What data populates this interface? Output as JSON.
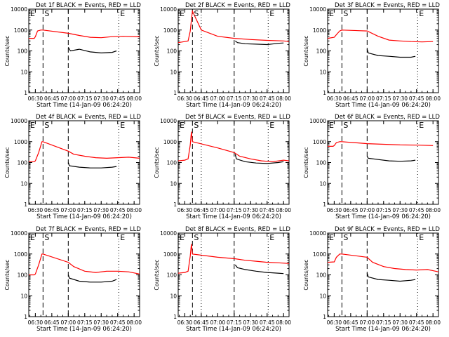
{
  "chart_data": [
    {
      "type": "line",
      "title": "Det 1f BLACK = Events, RED = LLD",
      "xlabel": "Start Time (14-Jan-09 06:24:20)",
      "ylabel": "Counts/sec",
      "xlim": [
        "06:24",
        "08:05"
      ],
      "ylim": [
        1,
        10000
      ],
      "yscale": "log",
      "grid": false,
      "xticks": [
        "06:30",
        "06:45",
        "07:00",
        "07:15",
        "07:30",
        "07:45",
        "08:00"
      ],
      "yticks": [
        "1",
        "10",
        "100",
        "1000",
        "10000"
      ],
      "markers": [
        {
          "label": "E",
          "x": "06:24"
        },
        {
          "label": "S",
          "x": "06:37"
        },
        {
          "label": "E",
          "x": "07:46"
        }
      ],
      "vlines_dashed": [
        "06:37",
        "07:00"
      ],
      "vlines_dotted": [
        "07:46"
      ],
      "series": [
        {
          "name": "LLD",
          "color": "#ff0000",
          "x": [
            "06:24",
            "06:29",
            "06:30",
            "06:32",
            "06:35",
            "06:36",
            "06:37",
            "07:00",
            "07:10",
            "07:20",
            "07:30",
            "07:40",
            "07:50",
            "08:05"
          ],
          "y": [
            400,
            400,
            480,
            900,
            1000,
            1000,
            1000,
            700,
            550,
            450,
            430,
            480,
            500,
            470
          ]
        },
        {
          "name": "Events",
          "color": "#000000",
          "x": [
            "07:00",
            "07:02",
            "07:10",
            "07:20",
            "07:30",
            "07:40",
            "07:44"
          ],
          "y": [
            150,
            100,
            120,
            90,
            80,
            85,
            100
          ]
        }
      ]
    },
    {
      "type": "line",
      "title": "Det 2f BLACK = Events, RED = LLD",
      "xlabel": "Start Time (14-Jan-09 06:24:20)",
      "ylabel": "Counts/sec",
      "xlim": [
        "06:24",
        "08:05"
      ],
      "ylim": [
        1,
        10000
      ],
      "yscale": "log",
      "grid": false,
      "xticks": [
        "06:30",
        "06:45",
        "07:00",
        "07:15",
        "07:30",
        "07:45",
        "08:00"
      ],
      "yticks": [
        "1",
        "10",
        "100",
        "1000",
        "10000"
      ],
      "markers": [
        {
          "label": "E",
          "x": "06:24"
        },
        {
          "label": "S",
          "x": "06:37"
        },
        {
          "label": "E",
          "x": "07:46"
        }
      ],
      "vlines_dashed": [
        "06:37",
        "07:15"
      ],
      "vlines_dotted": [
        "07:46",
        "06:45"
      ],
      "series": [
        {
          "name": "LLD",
          "color": "#ff0000",
          "x": [
            "06:24",
            "06:30",
            "06:33",
            "06:35",
            "06:36",
            "06:37",
            "06:45",
            "07:00",
            "07:15",
            "07:30",
            "07:45",
            "08:00",
            "08:05"
          ],
          "y": [
            250,
            280,
            300,
            900,
            3000,
            8000,
            1000,
            500,
            400,
            350,
            320,
            300,
            280
          ]
        },
        {
          "name": "Events",
          "color": "#000000",
          "x": [
            "07:16",
            "07:18",
            "07:25",
            "07:35",
            "07:45",
            "07:55",
            "08:00"
          ],
          "y": [
            300,
            250,
            220,
            210,
            200,
            230,
            240
          ]
        }
      ]
    },
    {
      "type": "line",
      "title": "Det 3f BLACK = Events, RED = LLD",
      "xlabel": "Start Time (14-Jan-09 06:24:20)",
      "ylabel": "Counts/sec",
      "xlim": [
        "06:24",
        "08:05"
      ],
      "ylim": [
        1,
        10000
      ],
      "yscale": "log",
      "grid": false,
      "xticks": [
        "06:30",
        "06:45",
        "07:00",
        "07:15",
        "07:30",
        "07:45",
        "08:00"
      ],
      "yticks": [
        "1",
        "10",
        "100",
        "1000",
        "10000"
      ],
      "markers": [
        {
          "label": "E",
          "x": "06:24"
        },
        {
          "label": "S",
          "x": "06:37"
        },
        {
          "label": "E",
          "x": "07:46"
        }
      ],
      "vlines_dashed": [
        "06:37",
        "07:00"
      ],
      "vlines_dotted": [
        "07:46"
      ],
      "series": [
        {
          "name": "LLD",
          "color": "#ff0000",
          "x": [
            "06:24",
            "06:30",
            "06:32",
            "06:35",
            "06:37",
            "07:00",
            "07:10",
            "07:20",
            "07:30",
            "07:40",
            "07:50",
            "08:00"
          ],
          "y": [
            400,
            450,
            600,
            900,
            1000,
            900,
            500,
            330,
            300,
            280,
            270,
            280
          ]
        },
        {
          "name": "Events",
          "color": "#000000",
          "x": [
            "07:00",
            "07:01",
            "07:10",
            "07:20",
            "07:30",
            "07:40",
            "07:44"
          ],
          "y": [
            120,
            80,
            60,
            55,
            50,
            50,
            55
          ]
        }
      ]
    },
    {
      "type": "line",
      "title": "Det 4f BLACK = Events, RED = LLD",
      "xlabel": "Start Time (14-Jan-09 06:24:20)",
      "ylabel": "Counts/sec",
      "xlim": [
        "06:24",
        "08:05"
      ],
      "ylim": [
        1,
        10000
      ],
      "yscale": "log",
      "grid": false,
      "xticks": [
        "06:30",
        "06:45",
        "07:00",
        "07:15",
        "07:30",
        "07:45",
        "08:00"
      ],
      "yticks": [
        "1",
        "10",
        "100",
        "1000",
        "10000"
      ],
      "markers": [
        {
          "label": "E",
          "x": "06:24"
        },
        {
          "label": "S",
          "x": "06:37"
        },
        {
          "label": "E",
          "x": "07:46"
        }
      ],
      "vlines_dashed": [
        "06:37",
        "07:00"
      ],
      "vlines_dotted": [
        "07:46"
      ],
      "series": [
        {
          "name": "LLD",
          "color": "#ff0000",
          "x": [
            "06:24",
            "06:29",
            "06:30",
            "06:33",
            "06:36",
            "06:37",
            "07:00",
            "07:05",
            "07:15",
            "07:25",
            "07:35",
            "07:45",
            "07:55",
            "08:05"
          ],
          "y": [
            110,
            110,
            120,
            300,
            1000,
            1000,
            350,
            250,
            200,
            170,
            160,
            170,
            180,
            160
          ]
        },
        {
          "name": "Events",
          "color": "#000000",
          "x": [
            "07:00",
            "07:01",
            "07:10",
            "07:20",
            "07:30",
            "07:40",
            "07:44"
          ],
          "y": [
            100,
            70,
            60,
            55,
            55,
            60,
            65
          ]
        }
      ]
    },
    {
      "type": "line",
      "title": "Det 5f BLACK = Events, RED = LLD",
      "xlabel": "Start Time (14-Jan-09 06:24:20)",
      "ylabel": "Counts/sec",
      "xlim": [
        "06:24",
        "08:05"
      ],
      "ylim": [
        1,
        10000
      ],
      "yscale": "log",
      "grid": false,
      "xticks": [
        "06:30",
        "06:45",
        "07:00",
        "07:15",
        "07:30",
        "07:45",
        "08:00"
      ],
      "yticks": [
        "1",
        "10",
        "100",
        "1000",
        "10000"
      ],
      "markers": [
        {
          "label": "E",
          "x": "06:24"
        },
        {
          "label": "S",
          "x": "06:37"
        },
        {
          "label": "E",
          "x": "07:46"
        }
      ],
      "vlines_dashed": [
        "06:37",
        "07:15"
      ],
      "vlines_dotted": [
        "07:46",
        "06:45"
      ],
      "series": [
        {
          "name": "LLD",
          "color": "#ff0000",
          "x": [
            "06:24",
            "06:30",
            "06:33",
            "06:35",
            "06:36",
            "06:37",
            "07:00",
            "07:15",
            "07:20",
            "07:30",
            "07:40",
            "07:50",
            "08:00",
            "08:05"
          ],
          "y": [
            120,
            130,
            150,
            700,
            3000,
            1000,
            500,
            300,
            200,
            150,
            120,
            110,
            130,
            120
          ]
        },
        {
          "name": "Events",
          "color": "#000000",
          "x": [
            "07:16",
            "07:17",
            "07:25",
            "07:35",
            "07:45",
            "07:55",
            "08:00"
          ],
          "y": [
            250,
            150,
            110,
            95,
            90,
            100,
            110
          ]
        }
      ]
    },
    {
      "type": "line",
      "title": "Det 6f BLACK = Events, RED = LLD",
      "xlabel": "Start Time (14-Jan-09 06:24:20)",
      "ylabel": "Counts/sec",
      "xlim": [
        "06:24",
        "08:05"
      ],
      "ylim": [
        1,
        10000
      ],
      "yscale": "log",
      "grid": false,
      "xticks": [
        "06:30",
        "06:45",
        "07:00",
        "07:15",
        "07:30",
        "07:45",
        "08:00"
      ],
      "yticks": [
        "1",
        "10",
        "100",
        "1000",
        "10000"
      ],
      "markers": [
        {
          "label": "E",
          "x": "06:24"
        },
        {
          "label": "S",
          "x": "06:37"
        },
        {
          "label": "E",
          "x": "07:46"
        }
      ],
      "vlines_dashed": [
        "06:37",
        "07:00"
      ],
      "vlines_dotted": [
        "07:46"
      ],
      "series": [
        {
          "name": "LLD",
          "color": "#ff0000",
          "x": [
            "06:24",
            "06:29",
            "06:30",
            "06:32",
            "06:35",
            "06:37",
            "07:00",
            "07:15",
            "07:30",
            "07:45",
            "08:00"
          ],
          "y": [
            600,
            600,
            650,
            900,
            1000,
            1000,
            800,
            750,
            700,
            680,
            650
          ]
        },
        {
          "name": "Events",
          "color": "#000000",
          "x": [
            "07:00",
            "07:01",
            "07:10",
            "07:20",
            "07:30",
            "07:40",
            "07:44"
          ],
          "y": [
            200,
            160,
            140,
            120,
            115,
            120,
            130
          ]
        }
      ]
    },
    {
      "type": "line",
      "title": "Det 7f BLACK = Events, RED = LLD",
      "xlabel": "Start Time (14-Jan-09 06:24:20)",
      "ylabel": "Counts/sec",
      "xlim": [
        "06:24",
        "08:05"
      ],
      "ylim": [
        1,
        10000
      ],
      "yscale": "log",
      "grid": false,
      "xticks": [
        "06:30",
        "06:45",
        "07:00",
        "07:15",
        "07:30",
        "07:45",
        "08:00"
      ],
      "yticks": [
        "1",
        "10",
        "100",
        "1000",
        "10000"
      ],
      "markers": [
        {
          "label": "E",
          "x": "06:24"
        },
        {
          "label": "S",
          "x": "06:37"
        },
        {
          "label": "E",
          "x": "07:46"
        }
      ],
      "vlines_dashed": [
        "06:37",
        "07:00"
      ],
      "vlines_dotted": [
        "07:46"
      ],
      "series": [
        {
          "name": "LLD",
          "color": "#ff0000",
          "x": [
            "06:24",
            "06:29",
            "06:30",
            "06:33",
            "06:36",
            "06:37",
            "07:00",
            "07:05",
            "07:15",
            "07:25",
            "07:35",
            "07:45",
            "07:55",
            "08:05"
          ],
          "y": [
            100,
            100,
            110,
            300,
            1000,
            1000,
            400,
            250,
            150,
            130,
            150,
            150,
            140,
            110
          ]
        },
        {
          "name": "Events",
          "color": "#000000",
          "x": [
            "07:00",
            "07:01",
            "07:10",
            "07:20",
            "07:30",
            "07:40",
            "07:44"
          ],
          "y": [
            100,
            70,
            50,
            45,
            45,
            50,
            60
          ]
        }
      ]
    },
    {
      "type": "line",
      "title": "Det 8f BLACK = Events, RED = LLD",
      "xlabel": "Start Time (14-Jan-09 06:24:20)",
      "ylabel": "Counts/sec",
      "xlim": [
        "06:24",
        "08:05"
      ],
      "ylim": [
        1,
        10000
      ],
      "yscale": "log",
      "grid": false,
      "xticks": [
        "06:30",
        "06:45",
        "07:00",
        "07:15",
        "07:30",
        "07:45",
        "08:00"
      ],
      "yticks": [
        "1",
        "10",
        "100",
        "1000",
        "10000"
      ],
      "markers": [
        {
          "label": "E",
          "x": "06:24"
        },
        {
          "label": "S",
          "x": "06:37"
        },
        {
          "label": "E",
          "x": "07:46"
        }
      ],
      "vlines_dashed": [
        "06:37",
        "07:15"
      ],
      "vlines_dotted": [
        "07:46",
        "06:45"
      ],
      "series": [
        {
          "name": "LLD",
          "color": "#ff0000",
          "x": [
            "06:24",
            "06:30",
            "06:33",
            "06:35",
            "06:36",
            "06:37",
            "07:00",
            "07:15",
            "07:25",
            "07:35",
            "07:45",
            "07:55",
            "08:05"
          ],
          "y": [
            120,
            130,
            150,
            800,
            3000,
            1000,
            700,
            600,
            500,
            450,
            400,
            380,
            350
          ]
        },
        {
          "name": "Events",
          "color": "#000000",
          "x": [
            "07:16",
            "07:18",
            "07:25",
            "07:35",
            "07:45",
            "07:55",
            "08:00"
          ],
          "y": [
            300,
            220,
            180,
            150,
            130,
            120,
            115
          ]
        }
      ]
    },
    {
      "type": "line",
      "title": "Det 9f BLACK = Events, RED = LLD",
      "xlabel": "Start Time (14-Jan-09 06:24:20)",
      "ylabel": "Counts/sec",
      "xlim": [
        "06:24",
        "08:05"
      ],
      "ylim": [
        1,
        10000
      ],
      "yscale": "log",
      "grid": false,
      "xticks": [
        "06:30",
        "06:45",
        "07:00",
        "07:15",
        "07:30",
        "07:45",
        "08:00"
      ],
      "yticks": [
        "1",
        "10",
        "100",
        "1000",
        "10000"
      ],
      "markers": [
        {
          "label": "E",
          "x": "06:24"
        },
        {
          "label": "S",
          "x": "06:37"
        },
        {
          "label": "E",
          "x": "07:46"
        }
      ],
      "vlines_dashed": [
        "06:37",
        "07:00"
      ],
      "vlines_dotted": [
        "07:46"
      ],
      "series": [
        {
          "name": "LLD",
          "color": "#ff0000",
          "x": [
            "06:24",
            "06:30",
            "06:32",
            "06:35",
            "06:37",
            "07:00",
            "07:05",
            "07:15",
            "07:25",
            "07:35",
            "07:45",
            "07:55",
            "08:05"
          ],
          "y": [
            400,
            420,
            700,
            1000,
            1000,
            700,
            400,
            250,
            200,
            180,
            170,
            180,
            140
          ]
        },
        {
          "name": "Events",
          "color": "#000000",
          "x": [
            "07:00",
            "07:01",
            "07:10",
            "07:20",
            "07:30",
            "07:40",
            "07:44"
          ],
          "y": [
            120,
            80,
            60,
            55,
            50,
            55,
            60
          ]
        }
      ]
    }
  ]
}
